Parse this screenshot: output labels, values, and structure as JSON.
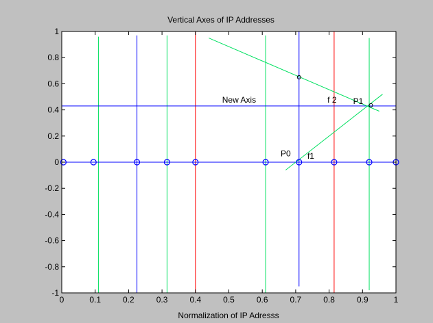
{
  "figure": {
    "background": "#c0c0c0"
  },
  "chart_data": {
    "type": "line",
    "title": "Vertical Axes of IP Addresses",
    "xlabel": "Normalization of IP Adresss",
    "ylabel": "",
    "xlim": [
      0,
      1
    ],
    "ylim": [
      -1,
      1
    ],
    "x_ticks": [
      "0",
      "0.1",
      "0.2",
      "0.3",
      "0.4",
      "0.5",
      "0.6",
      "0.7",
      "0.8",
      "0.9",
      "1"
    ],
    "y_ticks": [
      "-1",
      "-0.8",
      "-0.6",
      "-0.4",
      "-0.2",
      "0",
      "0.2",
      "0.4",
      "0.6",
      "0.8",
      "1"
    ],
    "grid": false,
    "vertical_axes": [
      {
        "x": 0.0,
        "ymin": -1,
        "ymax": 1,
        "color": "#ff0000"
      },
      {
        "x": 0.11,
        "ymin": -1,
        "ymax": 0.96,
        "color": "#00e060"
      },
      {
        "x": 0.225,
        "ymin": -1,
        "ymax": 0.97,
        "color": "#0000ff"
      },
      {
        "x": 0.315,
        "ymin": -1,
        "ymax": 0.97,
        "color": "#00e060"
      },
      {
        "x": 0.4,
        "ymin": -1,
        "ymax": 1,
        "color": "#ff0000"
      },
      {
        "x": 0.61,
        "ymin": -1,
        "ymax": 0.97,
        "color": "#00e060"
      },
      {
        "x": 0.71,
        "ymin": -0.95,
        "ymax": 1,
        "color": "#0000ff"
      },
      {
        "x": 0.815,
        "ymin": -1,
        "ymax": 1,
        "color": "#ff0000"
      },
      {
        "x": 0.92,
        "ymin": -0.98,
        "ymax": 0.95,
        "color": "#00e060"
      },
      {
        "x": 1.0,
        "ymin": -1,
        "ymax": 1,
        "color": "#800000"
      }
    ],
    "horizontal_lines": [
      {
        "name": "zero-axis",
        "y": 0,
        "x0": 0,
        "x1": 1,
        "color": "#0000ff"
      },
      {
        "name": "new-axis",
        "y": 0.43,
        "x0": 0,
        "x1": 1,
        "color": "#0000ff"
      }
    ],
    "markers": {
      "color": "#0000ff",
      "points": [
        {
          "x": 0.005,
          "y": 0
        },
        {
          "x": 0.095,
          "y": 0
        },
        {
          "x": 0.225,
          "y": 0
        },
        {
          "x": 0.315,
          "y": 0
        },
        {
          "x": 0.4,
          "y": 0
        },
        {
          "x": 0.61,
          "y": 0
        },
        {
          "x": 0.71,
          "y": 0
        },
        {
          "x": 0.815,
          "y": 0
        },
        {
          "x": 0.92,
          "y": 0
        },
        {
          "x": 1.0,
          "y": 0
        }
      ]
    },
    "extra_points": [
      {
        "x": 0.71,
        "y": 0.65,
        "color": "#000000"
      },
      {
        "x": 0.925,
        "y": 0.435,
        "color": "#000000"
      }
    ],
    "lines": [
      {
        "name": "f2",
        "color": "#00e060",
        "x": [
          0.44,
          0.95
        ],
        "y": [
          0.95,
          0.39
        ]
      },
      {
        "name": "f1",
        "color": "#00e060",
        "x": [
          0.67,
          0.96
        ],
        "y": [
          -0.06,
          0.52
        ]
      }
    ],
    "annotations": [
      {
        "text": "New Axis",
        "x": 0.48,
        "y": 0.455
      },
      {
        "text": "f 2",
        "x": 0.795,
        "y": 0.455
      },
      {
        "text": "P1",
        "x": 0.872,
        "y": 0.445
      },
      {
        "text": "P0",
        "x": 0.655,
        "y": 0.045
      },
      {
        "text": "f1",
        "x": 0.735,
        "y": 0.025
      }
    ]
  }
}
